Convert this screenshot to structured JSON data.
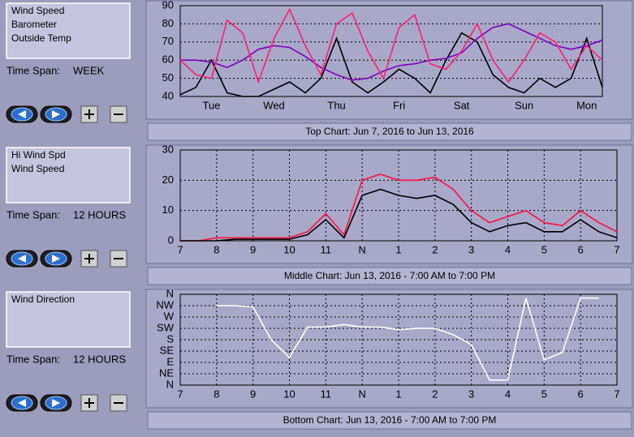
{
  "panels": [
    {
      "legend": [
        "Wind Speed",
        "Barometer",
        "Outside Temp"
      ],
      "time_span_label": "Time Span:",
      "time_span": "WEEK",
      "caption": "Top Chart:  Jun 7, 2016  to  Jun 13, 2016",
      "chart_data": {
        "type": "line",
        "xgrid": false,
        "grid": true,
        "x": [
          0,
          0.25,
          0.5,
          0.75,
          1,
          1.25,
          1.5,
          1.75,
          2,
          2.25,
          2.5,
          2.75,
          3,
          3.25,
          3.5,
          3.75,
          4,
          4.25,
          4.5,
          4.75,
          5,
          5.25,
          5.5,
          5.75,
          6,
          6.25,
          6.5,
          6.75
        ],
        "xlim": [
          0,
          6.75
        ],
        "xticks": [
          {
            "value": 0.5,
            "label": "Tue"
          },
          {
            "value": 1.5,
            "label": "Wed"
          },
          {
            "value": 2.5,
            "label": "Thu"
          },
          {
            "value": 3.5,
            "label": "Fri"
          },
          {
            "value": 4.5,
            "label": "Sat"
          },
          {
            "value": 5.5,
            "label": "Sun"
          },
          {
            "value": 6.5,
            "label": "Mon"
          }
        ],
        "ylim": [
          40,
          90
        ],
        "yticks": [
          40,
          50,
          60,
          70,
          80,
          90
        ],
        "series": [
          {
            "name": "Wind Speed",
            "color": "#000000",
            "values": [
              41,
              45,
              60,
              42,
              40,
              40,
              44,
              48,
              42,
              50,
              72,
              48,
              42,
              48,
              55,
              50,
              42,
              60,
              75,
              70,
              52,
              45,
              42,
              50,
              45,
              50,
              72,
              45
            ]
          },
          {
            "name": "Barometer",
            "color": "#8000c0",
            "values": [
              60,
              60,
              59,
              56,
              60,
              66,
              68,
              67,
              62,
              56,
              52,
              49,
              50,
              54,
              57,
              58,
              60,
              61,
              64,
              72,
              78,
              80,
              76,
              72,
              68,
              66,
              68,
              71
            ]
          },
          {
            "name": "Outside Temp",
            "color": "#ff2070",
            "values": [
              60,
              52,
              50,
              82,
              75,
              48,
              72,
              88,
              68,
              52,
              80,
              86,
              65,
              50,
              78,
              85,
              58,
              55,
              65,
              80,
              60,
              48,
              60,
              75,
              70,
              55,
              68,
              60
            ]
          }
        ]
      }
    },
    {
      "legend": [
        "Hi Wind Spd",
        "Wind Speed"
      ],
      "time_span_label": "Time Span:",
      "time_span": "12 HOURS",
      "caption": "Middle Chart:  Jun 13, 2016 - 7:00 AM  to  7:00 PM",
      "chart_data": {
        "type": "line",
        "xgrid": true,
        "grid": true,
        "x": [
          7,
          7.5,
          8,
          8.5,
          9,
          9.5,
          10,
          10.5,
          11,
          11.5,
          12,
          12.5,
          13,
          13.5,
          14,
          14.5,
          15,
          15.5,
          16,
          16.5,
          17,
          17.5,
          18,
          18.5,
          19
        ],
        "xlim": [
          7,
          19
        ],
        "xticks": [
          7,
          8,
          9,
          10,
          11,
          {
            "value": 12,
            "label": "N"
          },
          {
            "value": 13,
            "label": "1"
          },
          {
            "value": 14,
            "label": "2"
          },
          {
            "value": 15,
            "label": "3"
          },
          {
            "value": 16,
            "label": "4"
          },
          {
            "value": 17,
            "label": "5"
          },
          {
            "value": 18,
            "label": "6"
          },
          {
            "value": 19,
            "label": "7"
          }
        ],
        "ylim": [
          0,
          30
        ],
        "yticks": [
          0,
          10,
          20,
          30
        ],
        "series": [
          {
            "name": "Hi Wind Spd",
            "color": "#ff1040",
            "values": [
              0,
              0,
              1,
              1,
              1,
              1,
              1,
              3,
              9,
              2,
              20,
              22,
              20,
              20,
              21,
              17,
              10,
              6,
              8,
              10,
              6,
              5,
              10,
              6,
              3
            ]
          },
          {
            "name": "Wind Speed",
            "color": "#000000",
            "values": [
              0,
              0,
              0,
              0.5,
              0.5,
              0.5,
              0.5,
              2,
              7,
              1,
              15,
              17,
              15,
              14,
              15,
              12,
              6,
              3,
              5,
              6,
              3,
              3,
              7,
              3,
              1
            ]
          }
        ]
      }
    },
    {
      "legend": [
        "Wind Direction"
      ],
      "time_span_label": "Time Span:",
      "time_span": "12 HOURS",
      "caption": "Bottom Chart:  Jun 13, 2016 - 7:00 AM  to  7:00 PM",
      "chart_data": {
        "type": "line",
        "xgrid": true,
        "grid": true,
        "x": [
          7,
          7.5,
          8,
          8.5,
          9,
          9.5,
          10,
          10.5,
          11,
          11.5,
          12,
          12.5,
          13,
          13.5,
          14,
          14.5,
          15,
          15.5,
          16,
          16.5,
          17,
          17.5,
          18,
          18.5,
          19
        ],
        "xlim": [
          7,
          19
        ],
        "xticks": [
          7,
          8,
          9,
          10,
          11,
          {
            "value": 12,
            "label": "N"
          },
          {
            "value": 13,
            "label": "1"
          },
          {
            "value": 14,
            "label": "2"
          },
          {
            "value": 15,
            "label": "3"
          },
          {
            "value": 16,
            "label": "4"
          },
          {
            "value": 17,
            "label": "5"
          },
          {
            "value": 18,
            "label": "6"
          },
          {
            "value": 19,
            "label": "7"
          }
        ],
        "ylim": [
          0,
          360
        ],
        "yticks": [
          {
            "value": 0,
            "label": "N"
          },
          {
            "value": 45,
            "label": "NE"
          },
          {
            "value": 90,
            "label": "E"
          },
          {
            "value": 135,
            "label": "SE"
          },
          {
            "value": 180,
            "label": "S"
          },
          {
            "value": 225,
            "label": "SW"
          },
          {
            "value": 270,
            "label": "W"
          },
          {
            "value": 315,
            "label": "NW"
          },
          {
            "value": 360,
            "label": "N"
          }
        ],
        "series": [
          {
            "name": "Wind Direction",
            "color": "#ffffff",
            "values": [
              null,
              null,
              315,
              315,
              310,
              180,
              110,
              230,
              230,
              240,
              230,
              230,
              220,
              225,
              225,
              200,
              160,
              20,
              20,
              345,
              100,
              130,
              345,
              345,
              null
            ]
          }
        ]
      }
    }
  ]
}
